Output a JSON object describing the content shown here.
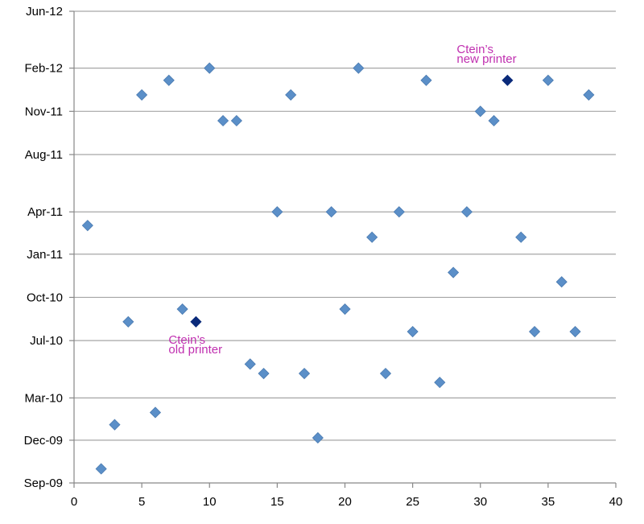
{
  "chart_data": {
    "type": "scatter",
    "title": "",
    "xlabel": "",
    "ylabel": "",
    "xlim": [
      0,
      40
    ],
    "x_ticks": [
      "0",
      "5",
      "10",
      "15",
      "20",
      "25",
      "30",
      "35",
      "40"
    ],
    "ylim": [
      "2009-09-01",
      "2012-06-01"
    ],
    "y_ticks": [
      {
        "date": "2009-09-01",
        "label": "Sep-09"
      },
      {
        "date": "2009-12-01",
        "label": "Dec-09"
      },
      {
        "date": "2010-03-01",
        "label": "Mar-10"
      },
      {
        "date": "2010-07-01",
        "label": "Jul-10"
      },
      {
        "date": "2010-10-01",
        "label": "Oct-10"
      },
      {
        "date": "2011-01-01",
        "label": "Jan-11"
      },
      {
        "date": "2011-04-01",
        "label": "Apr-11"
      },
      {
        "date": "2011-08-01",
        "label": "Aug-11"
      },
      {
        "date": "2011-11-01",
        "label": "Nov-11"
      },
      {
        "date": "2012-02-01",
        "label": "Feb-12"
      },
      {
        "date": "2012-06-01",
        "label": "Jun-12"
      }
    ],
    "grid": "horizontal",
    "colors": {
      "point": "#5b8fc8",
      "point_stroke": "#4a7ab0",
      "highlight": "#0a2a7a",
      "annotation": "#c030b0",
      "grid": "#a6a6a6",
      "axis": "#878787"
    },
    "points": [
      {
        "x": 1,
        "y": "2011-03-03"
      },
      {
        "x": 2,
        "y": "2009-10-01"
      },
      {
        "x": 3,
        "y": "2010-01-03"
      },
      {
        "x": 4,
        "y": "2010-08-10"
      },
      {
        "x": 5,
        "y": "2011-12-06"
      },
      {
        "x": 6,
        "y": "2010-01-29"
      },
      {
        "x": 7,
        "y": "2012-01-06"
      },
      {
        "x": 8,
        "y": "2010-09-06"
      },
      {
        "x": 9,
        "y": "2010-08-10",
        "highlight": true
      },
      {
        "x": 10,
        "y": "2012-02-01"
      },
      {
        "x": 11,
        "y": "2011-10-12"
      },
      {
        "x": 12,
        "y": "2011-10-12"
      },
      {
        "x": 13,
        "y": "2010-05-12"
      },
      {
        "x": 14,
        "y": "2010-04-22"
      },
      {
        "x": 15,
        "y": "2011-04-01"
      },
      {
        "x": 16,
        "y": "2011-12-06"
      },
      {
        "x": 17,
        "y": "2010-04-22"
      },
      {
        "x": 18,
        "y": "2009-12-06"
      },
      {
        "x": 19,
        "y": "2011-04-01"
      },
      {
        "x": 20,
        "y": "2010-09-06"
      },
      {
        "x": 21,
        "y": "2012-02-01"
      },
      {
        "x": 22,
        "y": "2011-02-06"
      },
      {
        "x": 23,
        "y": "2010-04-22"
      },
      {
        "x": 24,
        "y": "2011-04-01"
      },
      {
        "x": 25,
        "y": "2010-07-20"
      },
      {
        "x": 26,
        "y": "2012-01-06"
      },
      {
        "x": 27,
        "y": "2010-04-03"
      },
      {
        "x": 28,
        "y": "2010-11-23"
      },
      {
        "x": 29,
        "y": "2011-04-01"
      },
      {
        "x": 30,
        "y": "2011-11-01"
      },
      {
        "x": 31,
        "y": "2011-10-12"
      },
      {
        "x": 32,
        "y": "2012-01-06",
        "highlight": true
      },
      {
        "x": 33,
        "y": "2011-02-06"
      },
      {
        "x": 34,
        "y": "2010-07-20"
      },
      {
        "x": 35,
        "y": "2012-01-06"
      },
      {
        "x": 36,
        "y": "2010-11-03"
      },
      {
        "x": 37,
        "y": "2010-07-20"
      },
      {
        "x": 38,
        "y": "2011-12-06"
      }
    ],
    "annotations": [
      {
        "text": [
          "Ctein’s",
          "old printer"
        ],
        "x": 9,
        "y": "2010-08-10",
        "position": "below-left"
      },
      {
        "text": [
          "Ctein’s",
          "new printer"
        ],
        "x": 32,
        "y": "2012-01-06",
        "position": "above-left"
      }
    ]
  }
}
